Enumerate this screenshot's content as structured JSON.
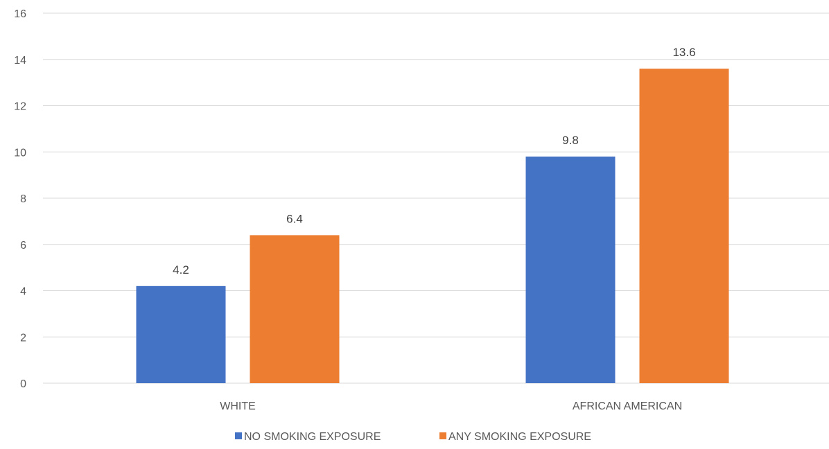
{
  "chart_data": {
    "type": "bar",
    "title": "",
    "xlabel": "",
    "ylabel": "",
    "categories": [
      "WHITE",
      "AFRICAN AMERICAN"
    ],
    "series": [
      {
        "name": "NO SMOKING EXPOSURE",
        "values": [
          4.2,
          9.8
        ],
        "color": "#4472c4"
      },
      {
        "name": "ANY SMOKING EXPOSURE",
        "values": [
          6.4,
          13.6
        ],
        "color": "#ed7d31"
      }
    ],
    "ylim": [
      0,
      16
    ],
    "yticks": [
      0,
      2,
      4,
      6,
      8,
      10,
      12,
      14,
      16
    ],
    "grid": true,
    "data_labels": true,
    "legend_position": "bottom"
  }
}
